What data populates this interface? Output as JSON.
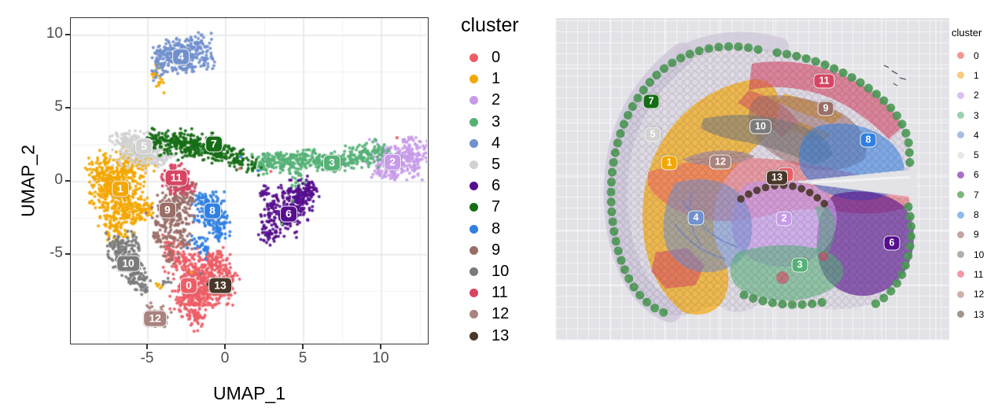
{
  "clusters": [
    {
      "id": "0",
      "color": "#EE5D66",
      "soft": "#F49792"
    },
    {
      "id": "1",
      "color": "#F4A701",
      "soft": "#F8CB79"
    },
    {
      "id": "2",
      "color": "#C79BEA",
      "soft": "#DCC0F2"
    },
    {
      "id": "3",
      "color": "#56B177",
      "soft": "#9BD2AB"
    },
    {
      "id": "4",
      "color": "#7190CE",
      "soft": "#A8BBE2"
    },
    {
      "id": "5",
      "color": "#D2D2D2",
      "soft": "#E9E9E7"
    },
    {
      "id": "6",
      "color": "#560E8E",
      "soft": "#A96FCB"
    },
    {
      "id": "7",
      "color": "#156E15",
      "soft": "#7CB77C"
    },
    {
      "id": "8",
      "color": "#2F80E3",
      "soft": "#8FB9EE"
    },
    {
      "id": "9",
      "color": "#9A6E67",
      "soft": "#C5A59F"
    },
    {
      "id": "10",
      "color": "#7B7B7B",
      "soft": "#B1AEAE"
    },
    {
      "id": "11",
      "color": "#D84563",
      "soft": "#F598A6"
    },
    {
      "id": "12",
      "color": "#A9837D",
      "soft": "#CDB0AA"
    },
    {
      "id": "13",
      "color": "#493729",
      "soft": "#A1958C"
    }
  ],
  "left": {
    "x_title": "UMAP_1",
    "y_title": "UMAP_2",
    "legend_title": "cluster"
  },
  "right": {
    "legend_title": "cluster"
  },
  "tissue_colors": {
    "bg": "#E3E2E7",
    "base": "#D9D3DF",
    "band5": "#CFC8DA",
    "streak4": "#6F87C9",
    "rim": "#4E9B57",
    "dots13": "#4F3B2E",
    "lens12": "#B59490",
    "slit_line": "#F2F1F4",
    "scratch": "#585864"
  },
  "chart_data": [
    {
      "type": "scatter",
      "panel": "UMAP embedding",
      "xlabel": "UMAP_1",
      "ylabel": "UMAP_2",
      "xticks": [
        -5,
        0,
        5,
        10
      ],
      "yticks": [
        -5,
        0,
        5,
        10
      ],
      "xlim": [
        -9.95,
        13.08
      ],
      "ylim": [
        -11.18,
        11.18
      ],
      "legend_title": "cluster",
      "legend_position": "right",
      "grid": true,
      "clusters": [
        {
          "id": "0",
          "label_x": -2.32,
          "label_y": -7.15,
          "blobs": [
            [
              -1.5,
              -6.6,
              0.85,
              0.8,
              280
            ],
            [
              -2.3,
              -8.0,
              0.6,
              0.6,
              140
            ],
            [
              -3.0,
              -5.4,
              0.5,
              0.5,
              70
            ],
            [
              -0.7,
              -5.4,
              0.45,
              0.45,
              60
            ],
            [
              -0.3,
              -7.5,
              0.4,
              0.5,
              50
            ],
            [
              -2.0,
              -9.3,
              0.35,
              0.4,
              40
            ],
            [
              -3.6,
              -4.4,
              0.25,
              0.35,
              20
            ],
            [
              0.2,
              -6.4,
              0.3,
              0.3,
              25
            ]
          ]
        },
        {
          "id": "1",
          "label_x": -6.72,
          "label_y": -0.54,
          "blobs": [
            [
              -7.0,
              -0.5,
              0.75,
              1.1,
              350
            ],
            [
              -5.9,
              1.0,
              0.6,
              0.6,
              110
            ],
            [
              -8.0,
              0.6,
              0.45,
              0.7,
              80
            ],
            [
              -6.3,
              -2.4,
              0.6,
              0.6,
              90
            ],
            [
              -7.2,
              -3.2,
              0.4,
              0.4,
              40
            ],
            [
              -5.4,
              -1.8,
              0.4,
              0.4,
              40
            ],
            [
              -4.4,
              7.1,
              0.2,
              0.45,
              22
            ],
            [
              -4.2,
              -7.1,
              0.12,
              0.12,
              5
            ]
          ]
        },
        {
          "id": "2",
          "label_x": 10.76,
          "label_y": 1.29,
          "blobs": [
            [
              10.9,
              1.5,
              0.8,
              0.6,
              190
            ],
            [
              11.9,
              2.3,
              0.45,
              0.5,
              50
            ],
            [
              10.3,
              0.8,
              0.4,
              0.3,
              35
            ],
            [
              12.2,
              1.2,
              0.3,
              0.4,
              25
            ]
          ]
        },
        {
          "id": "3",
          "label_x": 6.87,
          "label_y": 1.24,
          "blobs": [
            [
              3.3,
              1.35,
              0.7,
              0.35,
              110
            ],
            [
              5.0,
              1.5,
              0.9,
              0.3,
              130
            ],
            [
              6.9,
              1.35,
              0.8,
              0.3,
              120
            ],
            [
              8.6,
              1.7,
              0.6,
              0.4,
              80
            ],
            [
              9.7,
              2.1,
              0.4,
              0.4,
              40
            ],
            [
              4.6,
              0.3,
              0.25,
              0.5,
              25
            ],
            [
              2.3,
              1.2,
              0.3,
              0.3,
              25
            ]
          ]
        },
        {
          "id": "4",
          "label_x": -2.83,
          "label_y": 8.49,
          "blobs": [
            [
              -3.3,
              8.8,
              0.75,
              0.5,
              160
            ],
            [
              -2.0,
              9.0,
              0.5,
              0.5,
              60
            ],
            [
              -4.2,
              7.9,
              0.35,
              0.45,
              40
            ],
            [
              -1.6,
              9.5,
              0.3,
              0.3,
              20
            ],
            [
              -2.6,
              7.7,
              0.35,
              0.3,
              25
            ],
            [
              -1.2,
              8.3,
              0.3,
              0.4,
              30
            ]
          ]
        },
        {
          "id": "5",
          "label_x": -5.2,
          "label_y": 2.37,
          "blobs": [
            [
              -5.6,
              2.2,
              0.8,
              0.55,
              220
            ],
            [
              -4.2,
              1.6,
              0.5,
              0.4,
              60
            ],
            [
              -6.6,
              2.9,
              0.4,
              0.3,
              35
            ]
          ]
        },
        {
          "id": "6",
          "label_x": 4.09,
          "label_y": -2.26,
          "blobs": [
            [
              4.3,
              -1.5,
              0.55,
              0.7,
              170
            ],
            [
              3.4,
              -2.8,
              0.5,
              0.5,
              70
            ],
            [
              5.1,
              -0.9,
              0.4,
              0.4,
              50
            ],
            [
              2.8,
              -3.7,
              0.3,
              0.3,
              25
            ],
            [
              5.5,
              -0.2,
              0.25,
              0.25,
              20
            ],
            [
              2.6,
              -0.9,
              0.25,
              0.35,
              18
            ],
            [
              3.0,
              -1.9,
              0.3,
              0.3,
              25
            ]
          ]
        },
        {
          "id": "7",
          "label_x": -0.71,
          "label_y": 2.53,
          "blobs": [
            [
              -3.3,
              2.7,
              0.8,
              0.4,
              160
            ],
            [
              -1.9,
              2.4,
              0.7,
              0.4,
              100
            ],
            [
              -0.4,
              2.0,
              0.6,
              0.35,
              70
            ],
            [
              0.9,
              1.5,
              0.5,
              0.3,
              45
            ],
            [
              1.7,
              0.9,
              0.25,
              0.35,
              18
            ],
            [
              -4.5,
              3.1,
              0.3,
              0.25,
              20
            ]
          ]
        },
        {
          "id": "8",
          "label_x": -0.81,
          "label_y": -2.04,
          "blobs": [
            [
              -0.9,
              -2.2,
              0.5,
              0.65,
              130
            ],
            [
              -1.5,
              -1.3,
              0.3,
              0.3,
              30
            ],
            [
              -0.4,
              -3.3,
              0.3,
              0.45,
              35
            ],
            [
              -1.2,
              -4.6,
              0.3,
              0.3,
              20
            ],
            [
              -1.9,
              -4.0,
              0.25,
              0.25,
              15
            ]
          ]
        },
        {
          "id": "9",
          "label_x": -3.69,
          "label_y": -1.99,
          "blobs": [
            [
              -3.4,
              -2.1,
              0.6,
              0.75,
              160
            ],
            [
              -2.7,
              -1.1,
              0.4,
              0.4,
              45
            ],
            [
              -4.2,
              -3.3,
              0.4,
              0.5,
              40
            ],
            [
              -2.9,
              -3.9,
              0.35,
              0.4,
              35
            ],
            [
              -2.3,
              -0.3,
              0.25,
              0.25,
              15
            ],
            [
              -3.5,
              -5.2,
              0.25,
              0.4,
              15
            ]
          ]
        },
        {
          "id": "10",
          "label_x": -6.21,
          "label_y": -5.65,
          "blobs": [
            [
              -6.6,
              -4.9,
              0.45,
              0.5,
              70
            ],
            [
              -6.1,
              -5.9,
              0.4,
              0.5,
              70
            ],
            [
              -5.6,
              -6.7,
              0.35,
              0.4,
              40
            ],
            [
              -7.0,
              -4.2,
              0.3,
              0.3,
              30
            ],
            [
              -5.2,
              -7.3,
              0.2,
              0.25,
              12
            ],
            [
              -3.8,
              -6.9,
              0.15,
              0.15,
              7
            ],
            [
              -5.9,
              -3.9,
              0.25,
              0.3,
              18
            ]
          ]
        },
        {
          "id": "11",
          "label_x": -3.13,
          "label_y": 0.22,
          "blobs": [
            [
              -3.1,
              0.2,
              0.45,
              0.45,
              110
            ],
            [
              -2.5,
              -0.4,
              0.25,
              0.3,
              25
            ]
          ]
        },
        {
          "id": "12",
          "label_x": -4.49,
          "label_y": -9.41,
          "blobs": [
            [
              -4.2,
              -9.4,
              0.35,
              0.35,
              40
            ],
            [
              -4.6,
              -8.7,
              0.25,
              0.25,
              12
            ]
          ]
        },
        {
          "id": "13",
          "label_x": -0.3,
          "label_y": -7.15,
          "blobs": [
            [
              -1.0,
              -6.85,
              0.2,
              0.15,
              10
            ]
          ]
        }
      ],
      "outliers": [
        [
          "0",
          11.0,
          3.0
        ],
        [
          "0",
          0.9,
          0.9
        ],
        [
          "8",
          0.95,
          1.7
        ],
        [
          "8",
          2.1,
          0.75
        ],
        [
          "0",
          -2.9,
          8.9
        ],
        [
          "3",
          -1.5,
          2.1
        ],
        [
          "3",
          4.3,
          -1.3
        ],
        [
          "3",
          3.6,
          -2.9
        ],
        [
          "0",
          2.9,
          0.7
        ],
        [
          "10",
          -1.6,
          -6.3
        ],
        [
          "1",
          -2.2,
          -6.2
        ]
      ]
    },
    {
      "type": "spatial",
      "panel": "tissue section spatial clusters",
      "legend_title": "cluster",
      "labels": [
        {
          "c": "7",
          "x": 122,
          "y": 106
        },
        {
          "c": "5",
          "x": 124,
          "y": 148
        },
        {
          "c": "1",
          "x": 145,
          "y": 184
        },
        {
          "c": "12",
          "x": 210,
          "y": 183
        },
        {
          "c": "10",
          "x": 261,
          "y": 138
        },
        {
          "c": "9",
          "x": 344,
          "y": 115
        },
        {
          "c": "11",
          "x": 342,
          "y": 80
        },
        {
          "c": "8",
          "x": 398,
          "y": 155
        },
        {
          "c": "0",
          "x": 293,
          "y": 199
        },
        {
          "c": "13",
          "x": 282,
          "y": 203
        },
        {
          "c": "4",
          "x": 179,
          "y": 254
        },
        {
          "c": "2",
          "x": 291,
          "y": 255
        },
        {
          "c": "3",
          "x": 311,
          "y": 314
        },
        {
          "c": "6",
          "x": 428,
          "y": 286
        }
      ]
    }
  ]
}
